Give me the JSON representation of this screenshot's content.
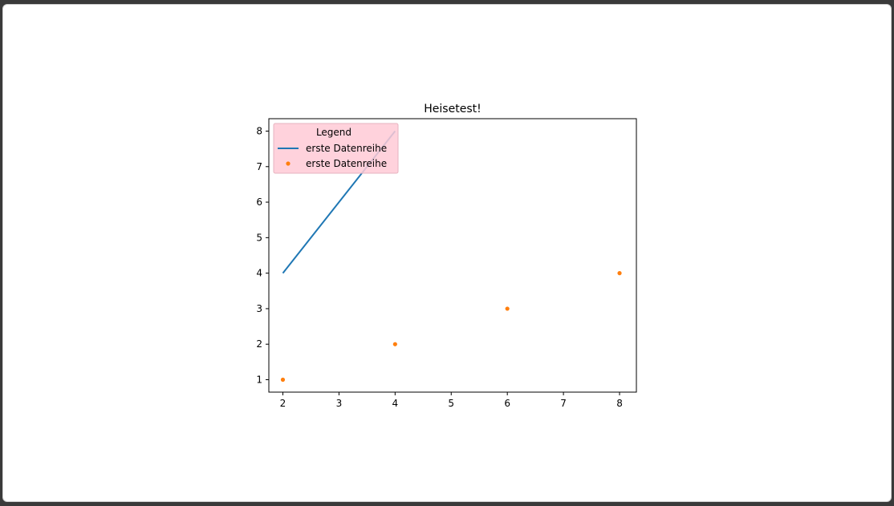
{
  "chart_data": {
    "type": "line",
    "title": "Heisetest!",
    "xlabel": "",
    "ylabel": "",
    "xlim": [
      1.75,
      8.3
    ],
    "ylim": [
      0.65,
      8.35
    ],
    "xticks": [
      2,
      3,
      4,
      5,
      6,
      7,
      8
    ],
    "yticks": [
      1,
      2,
      3,
      4,
      5,
      6,
      7,
      8
    ],
    "grid": false,
    "legend": {
      "title": "Legend",
      "placement": "top-left",
      "background": "#ffcad6"
    },
    "series": [
      {
        "name": "erste Datenreihe",
        "type": "line",
        "color": "#1f77b4",
        "x": [
          2,
          4
        ],
        "y": [
          4,
          8
        ]
      },
      {
        "name": "erste Datenreihe",
        "type": "scatter",
        "color": "#ff7f0e",
        "x": [
          2,
          4,
          6,
          8
        ],
        "y": [
          1,
          2,
          3,
          4
        ]
      }
    ]
  }
}
